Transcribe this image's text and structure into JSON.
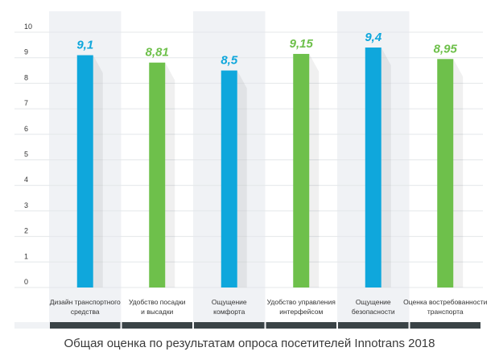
{
  "caption": "Общая оценка по результатам опроса посетителей Innotrans 2018",
  "colors": {
    "blue": "#0fa7dc",
    "green": "#6ec04b",
    "grid": "#e4e7ea",
    "band": "#f0f2f5",
    "footer_bar": "#3a4346",
    "tick_text": "#333333",
    "label_text": "#333333"
  },
  "chart_data": {
    "type": "bar",
    "title": "Общая оценка по результатам опроса посетителей Innotrans 2018",
    "ylim": [
      0,
      10
    ],
    "yticks": [
      "0",
      "1",
      "2",
      "3",
      "4",
      "5",
      "6",
      "7",
      "8",
      "9",
      "10"
    ],
    "grid": true,
    "categories": [
      [
        "Дизайн транспортного",
        "средства"
      ],
      [
        "Удобство посадки",
        "и высадки"
      ],
      [
        "Ощущение",
        "комфорта"
      ],
      [
        "Удобство управления",
        "интерфейсом"
      ],
      [
        "Ощущение",
        "безопасности"
      ],
      [
        "Оценка востребованности",
        "транспорта"
      ]
    ],
    "values": [
      9.1,
      8.81,
      8.5,
      9.15,
      9.4,
      8.95
    ],
    "value_labels": [
      "9,1",
      "8,81",
      "8,5",
      "9,15",
      "9,4",
      "8,95"
    ],
    "bar_colors": [
      "blue",
      "green",
      "blue",
      "green",
      "blue",
      "green"
    ]
  }
}
